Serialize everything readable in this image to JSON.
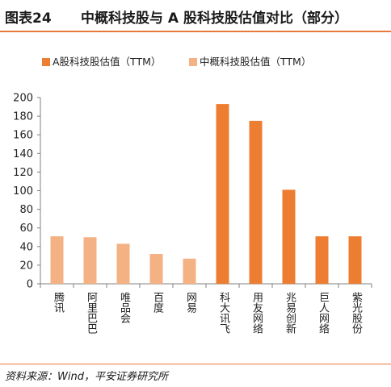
{
  "header": {
    "figure_number": "图表24",
    "title": "中概科技股与 A 股科技股估值对比（部分）"
  },
  "footer": {
    "source": "资料来源：Wind，平安证券研究所"
  },
  "colors": {
    "a_share": "#ed7d31",
    "china_concept": "#f4b183",
    "accent_rule": "#e8793a",
    "axis": "#808080"
  },
  "chart_data": {
    "type": "bar",
    "categories": [
      "腾讯",
      "阿里巴巴",
      "唯品会",
      "百度",
      "网易",
      "科大讯飞",
      "用友网络",
      "兆易创新",
      "巨人网络",
      "紫光股份"
    ],
    "series": [
      {
        "name": "A股科技股估值（TTM）",
        "color": "#ed7d31",
        "values": [
          null,
          null,
          null,
          null,
          null,
          193,
          175,
          101,
          51,
          51
        ]
      },
      {
        "name": "中概科技股估值（TTM）",
        "color": "#f4b183",
        "values": [
          51,
          50,
          43,
          32,
          27,
          null,
          null,
          null,
          null,
          null
        ]
      }
    ],
    "ylim": [
      0,
      200
    ],
    "yticks": [
      0,
      20,
      40,
      60,
      80,
      100,
      120,
      140,
      160,
      180,
      200
    ],
    "grid": false,
    "legend_position": "top",
    "xlabel": "",
    "ylabel": ""
  }
}
